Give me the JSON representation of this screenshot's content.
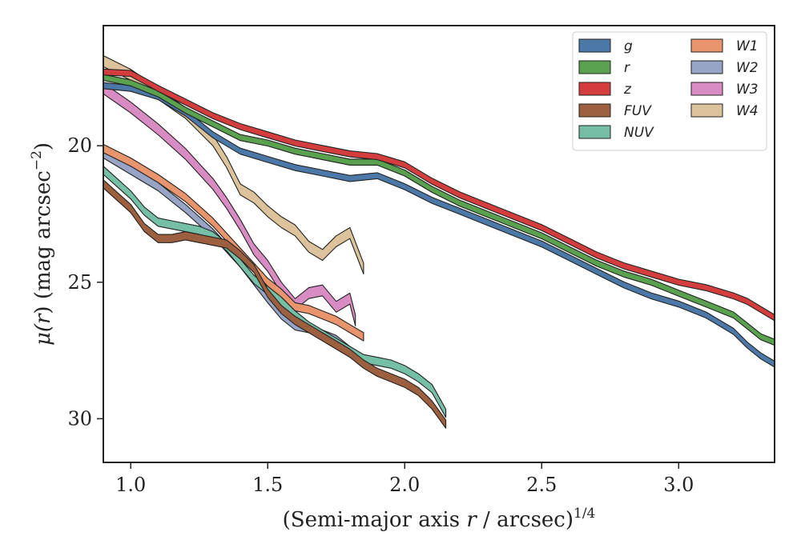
{
  "chart_data": {
    "type": "area",
    "xlabel_main": "(Semi-major axis ",
    "xlabel_var": "r",
    "xlabel_rest": " / arcsec)",
    "xlabel_exp": "1/4",
    "ylabel_main": "μ(",
    "ylabel_var": "r",
    "ylabel_rest": ") (mag arcsec",
    "ylabel_exp": "−2",
    "ylabel_close": ")",
    "xlim": [
      0.9,
      3.35
    ],
    "ylim": [
      31.6,
      15.6
    ],
    "y_inverted": true,
    "xticks": [
      "1.0",
      "1.5",
      "2.0",
      "2.5",
      "3.0"
    ],
    "xtick_values": [
      1.0,
      1.5,
      2.0,
      2.5,
      3.0
    ],
    "yticks": [
      "20",
      "25",
      "30"
    ],
    "ytick_values": [
      20,
      25,
      30
    ],
    "grid": false,
    "legend_position": "top-right",
    "legend_columns": 2,
    "series": [
      {
        "name": "g",
        "color": "#4c78a8",
        "width": 0.22,
        "x": [
          0.9,
          1.0,
          1.1,
          1.2,
          1.3,
          1.4,
          1.5,
          1.6,
          1.7,
          1.8,
          1.9,
          2.0,
          2.1,
          2.2,
          2.3,
          2.4,
          2.5,
          2.6,
          2.7,
          2.8,
          2.9,
          3.0,
          3.1,
          3.2,
          3.25,
          3.3,
          3.35
        ],
        "y": [
          17.8,
          17.9,
          18.2,
          18.8,
          19.6,
          20.2,
          20.5,
          20.8,
          21.0,
          21.2,
          21.1,
          21.5,
          22.0,
          22.4,
          22.8,
          23.2,
          23.6,
          24.1,
          24.6,
          25.1,
          25.5,
          25.8,
          26.2,
          26.8,
          27.3,
          27.7,
          28.0
        ]
      },
      {
        "name": "r",
        "color": "#59a14f",
        "width": 0.22,
        "x": [
          0.9,
          1.0,
          1.1,
          1.2,
          1.3,
          1.4,
          1.5,
          1.6,
          1.7,
          1.8,
          1.9,
          2.0,
          2.1,
          2.2,
          2.3,
          2.4,
          2.5,
          2.6,
          2.7,
          2.8,
          2.9,
          3.0,
          3.1,
          3.2,
          3.25,
          3.3,
          3.35
        ],
        "y": [
          17.5,
          17.7,
          18.1,
          18.7,
          19.2,
          19.7,
          19.9,
          20.2,
          20.4,
          20.6,
          20.6,
          21.0,
          21.6,
          22.1,
          22.5,
          22.9,
          23.3,
          23.8,
          24.3,
          24.7,
          25.0,
          25.4,
          25.8,
          26.2,
          26.6,
          27.0,
          27.2
        ]
      },
      {
        "name": "z",
        "color": "#d43d3d",
        "width": 0.22,
        "x": [
          0.9,
          1.0,
          1.1,
          1.2,
          1.3,
          1.4,
          1.5,
          1.6,
          1.7,
          1.8,
          1.9,
          2.0,
          2.1,
          2.2,
          2.3,
          2.4,
          2.5,
          2.6,
          2.7,
          2.8,
          2.9,
          3.0,
          3.1,
          3.2,
          3.25,
          3.3,
          3.35
        ],
        "y": [
          17.3,
          17.35,
          17.9,
          18.4,
          18.9,
          19.3,
          19.6,
          19.9,
          20.1,
          20.3,
          20.4,
          20.7,
          21.3,
          21.8,
          22.2,
          22.6,
          23.0,
          23.5,
          24.0,
          24.4,
          24.7,
          25.0,
          25.2,
          25.5,
          25.7,
          26.0,
          26.3
        ]
      },
      {
        "name": "FUV",
        "color": "#9c5f3f",
        "width": 0.3,
        "x": [
          0.9,
          1.0,
          1.05,
          1.1,
          1.15,
          1.2,
          1.25,
          1.3,
          1.35,
          1.4,
          1.45,
          1.5,
          1.55,
          1.6,
          1.65,
          1.7,
          1.75,
          1.8,
          1.85,
          1.9,
          1.95,
          2.0,
          2.05,
          2.1,
          2.15
        ],
        "y": [
          21.4,
          22.3,
          23.0,
          23.4,
          23.4,
          23.3,
          23.4,
          23.5,
          23.6,
          24.0,
          24.5,
          25.4,
          26.0,
          26.4,
          26.7,
          27.0,
          27.3,
          27.6,
          28.0,
          28.3,
          28.5,
          28.7,
          29.0,
          29.5,
          30.2
        ]
      },
      {
        "name": "NUV",
        "color": "#76bfa7",
        "width": 0.3,
        "x": [
          0.9,
          1.0,
          1.05,
          1.1,
          1.15,
          1.2,
          1.25,
          1.3,
          1.35,
          1.4,
          1.45,
          1.5,
          1.55,
          1.6,
          1.65,
          1.7,
          1.75,
          1.8,
          1.85,
          1.9,
          1.95,
          2.0,
          2.05,
          2.1,
          2.15
        ],
        "y": [
          20.9,
          21.8,
          22.4,
          22.8,
          22.9,
          23.0,
          23.1,
          23.3,
          23.7,
          24.3,
          24.9,
          25.3,
          25.7,
          26.2,
          26.6,
          26.9,
          27.2,
          27.5,
          27.8,
          27.9,
          28.0,
          28.2,
          28.5,
          28.9,
          29.8
        ]
      },
      {
        "name": "W1",
        "color": "#e8946d",
        "width": 0.3,
        "x": [
          0.9,
          1.0,
          1.1,
          1.2,
          1.3,
          1.4,
          1.5,
          1.55,
          1.6,
          1.65,
          1.7,
          1.75,
          1.8,
          1.85
        ],
        "y": [
          20.1,
          20.6,
          21.2,
          21.9,
          22.8,
          23.9,
          25.0,
          25.4,
          25.9,
          26.0,
          26.2,
          26.4,
          26.7,
          27.0
        ]
      },
      {
        "name": "W2",
        "color": "#97a4c6",
        "width": 0.3,
        "x": [
          0.9,
          1.0,
          1.1,
          1.2,
          1.3,
          1.4,
          1.5,
          1.55,
          1.6,
          1.65,
          1.7,
          1.75,
          1.8,
          1.85
        ],
        "y": [
          20.3,
          20.9,
          21.5,
          22.3,
          23.2,
          24.3,
          25.6,
          26.2,
          26.6,
          26.7,
          26.9,
          27.1,
          27.5,
          27.9
        ]
      },
      {
        "name": "W3",
        "color": "#d98cc3",
        "width": 0.4,
        "x": [
          0.9,
          1.0,
          1.1,
          1.2,
          1.3,
          1.35,
          1.4,
          1.45,
          1.5,
          1.55,
          1.6,
          1.65,
          1.7,
          1.75,
          1.8,
          1.82
        ],
        "y": [
          17.9,
          18.6,
          19.4,
          20.3,
          21.4,
          22.1,
          22.9,
          23.8,
          24.4,
          25.2,
          25.8,
          25.4,
          25.3,
          25.9,
          25.6,
          26.4
        ]
      },
      {
        "name": "W4",
        "color": "#dcc39b",
        "width": 0.4,
        "x": [
          0.9,
          1.0,
          1.1,
          1.2,
          1.3,
          1.35,
          1.4,
          1.45,
          1.5,
          1.55,
          1.6,
          1.65,
          1.7,
          1.75,
          1.8,
          1.85
        ],
        "y": [
          16.9,
          17.4,
          18.1,
          18.8,
          19.8,
          20.6,
          21.6,
          21.9,
          22.4,
          22.8,
          23.1,
          23.7,
          24.0,
          23.5,
          23.2,
          24.5
        ]
      }
    ]
  }
}
